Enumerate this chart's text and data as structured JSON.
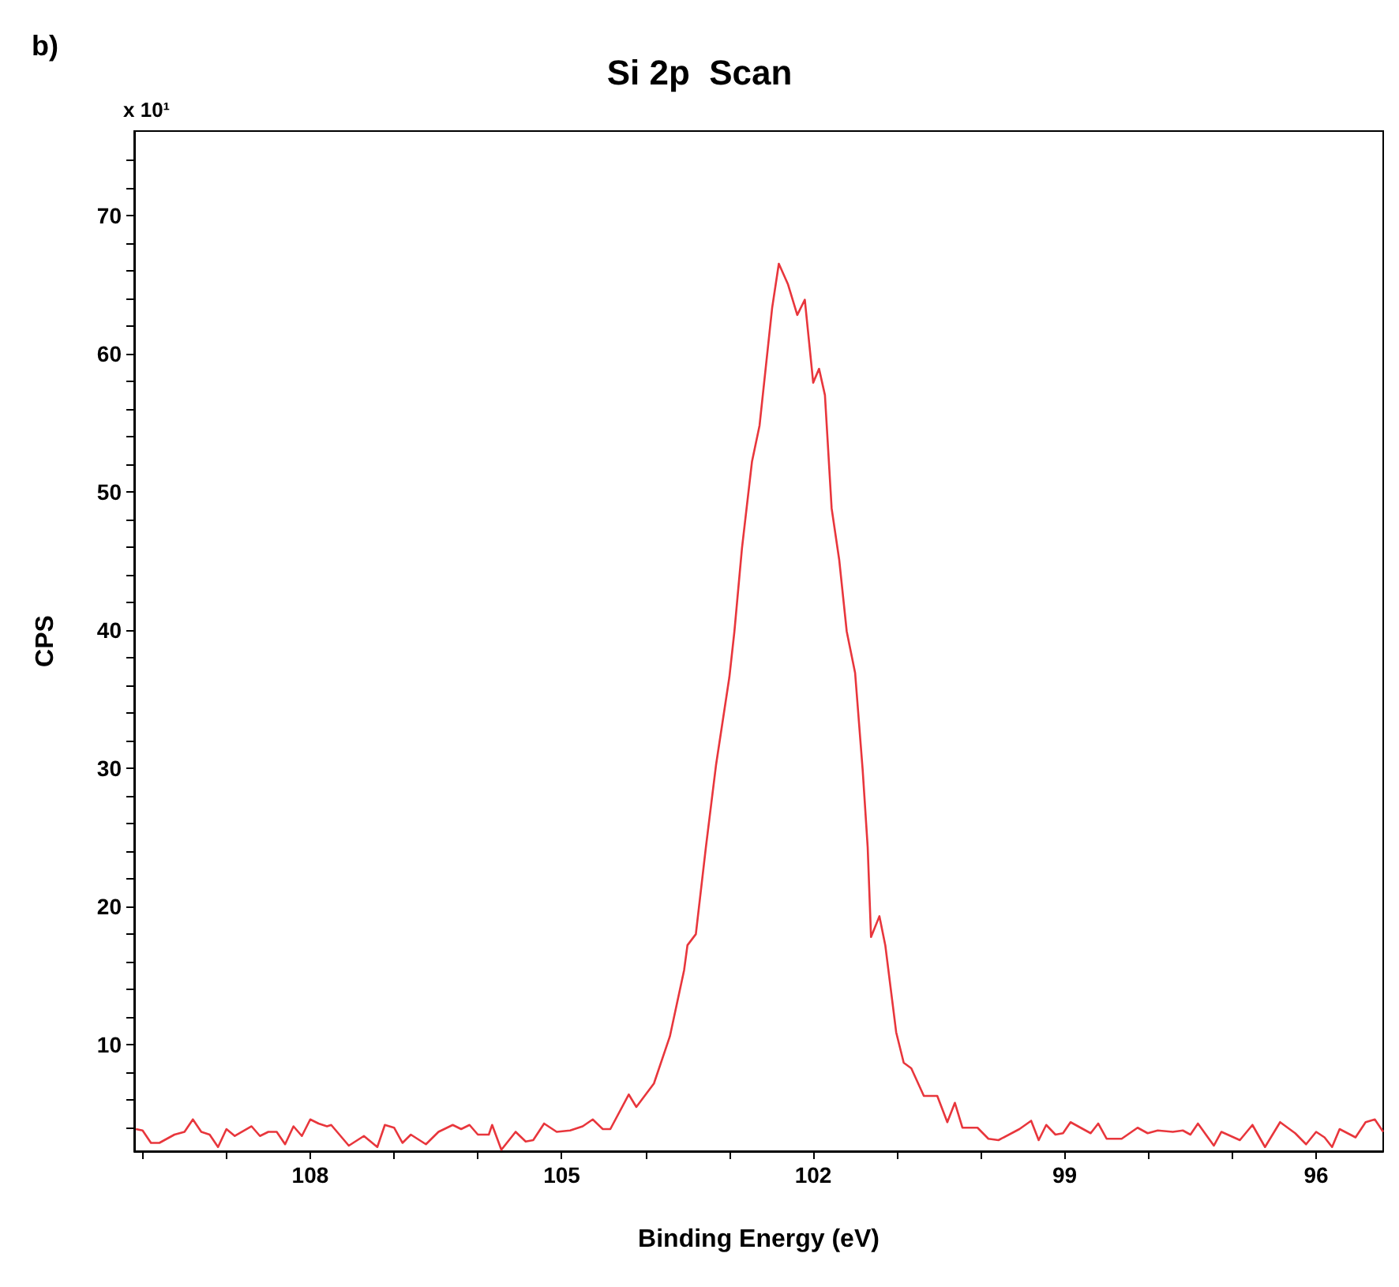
{
  "chart_data": {
    "type": "line",
    "title": "Si 2p  Scan",
    "xlabel": "Binding Energy (eV)",
    "ylabel": "CPS",
    "annotations": [
      "b)",
      "x 10¹"
    ],
    "xlim": [
      110.1,
      95.2
    ],
    "xticks": [
      {
        "value": 110,
        "label": null
      },
      {
        "value": 109,
        "label": null
      },
      108,
      {
        "value": 107,
        "label": null
      },
      {
        "value": 106,
        "label": null
      },
      105,
      {
        "value": 104,
        "label": null
      },
      {
        "value": 103,
        "label": null
      },
      102,
      {
        "value": 101,
        "label": null
      },
      {
        "value": 100,
        "label": null
      },
      99,
      {
        "value": 98,
        "label": null
      },
      {
        "value": 97,
        "label": null
      },
      96
    ],
    "ylim": [
      2.3,
      76.1
    ],
    "yticks": [
      {
        "value": 4,
        "label": null
      },
      {
        "value": 6,
        "label": null
      },
      {
        "value": 8,
        "label": null
      },
      10,
      {
        "value": 12,
        "label": null
      },
      {
        "value": 14,
        "label": null
      },
      {
        "value": 16,
        "label": null
      },
      {
        "value": 18,
        "label": null
      },
      20,
      {
        "value": 22,
        "label": null
      },
      {
        "value": 24,
        "label": null
      },
      {
        "value": 26,
        "label": null
      },
      {
        "value": 28,
        "label": null
      },
      30,
      {
        "value": 32,
        "label": null
      },
      {
        "value": 34,
        "label": null
      },
      {
        "value": 36,
        "label": null
      },
      {
        "value": 38,
        "label": null
      },
      40,
      {
        "value": 42,
        "label": null
      },
      {
        "value": 44,
        "label": null
      },
      {
        "value": 46,
        "label": null
      },
      {
        "value": 48,
        "label": null
      },
      50,
      {
        "value": 52,
        "label": null
      },
      {
        "value": 54,
        "label": null
      },
      {
        "value": 56,
        "label": null
      },
      {
        "value": 58,
        "label": null
      },
      60,
      {
        "value": 62,
        "label": null
      },
      {
        "value": 64,
        "label": null
      },
      {
        "value": 66,
        "label": null
      },
      {
        "value": 68,
        "label": null
      },
      70,
      {
        "value": 72,
        "label": null
      },
      {
        "value": 74,
        "label": null
      }
    ],
    "grid": false,
    "marker": "none",
    "line_style": "solid",
    "series": [
      {
        "color": "#e8363c",
        "x": [
          110.08,
          110.0,
          109.9,
          109.8,
          109.62,
          109.5,
          109.4,
          109.3,
          109.2,
          109.1,
          109.0,
          108.9,
          108.7,
          108.6,
          108.5,
          108.4,
          108.3,
          108.2,
          108.1,
          108.0,
          107.9,
          107.8,
          107.75,
          107.54,
          107.36,
          107.2,
          107.11,
          107.0,
          106.9,
          106.8,
          106.62,
          106.47,
          106.3,
          106.2,
          106.1,
          106.0,
          105.87,
          105.83,
          105.72,
          105.55,
          105.43,
          105.34,
          105.21,
          105.06,
          104.9,
          104.75,
          104.63,
          104.51,
          104.42,
          104.2,
          104.11,
          103.9,
          103.71,
          103.54,
          103.5,
          103.4,
          103.28,
          103.16,
          103.0,
          102.94,
          102.85,
          102.73,
          102.64,
          102.49,
          102.41,
          102.3,
          102.19,
          102.1,
          102.0,
          101.93,
          101.86,
          101.78,
          101.69,
          101.6,
          101.5,
          101.41,
          101.35,
          101.31,
          101.21,
          101.14,
          101.01,
          100.92,
          100.83,
          100.68,
          100.52,
          100.4,
          100.31,
          100.22,
          100.04,
          99.91,
          99.79,
          99.54,
          99.4,
          99.31,
          99.22,
          99.11,
          99.02,
          98.93,
          98.69,
          98.6,
          98.5,
          98.32,
          98.13,
          98.01,
          97.89,
          97.71,
          97.59,
          97.5,
          97.41,
          97.22,
          97.13,
          96.91,
          96.76,
          96.61,
          96.43,
          96.25,
          96.12,
          96.0,
          95.9,
          95.81,
          95.72,
          95.53,
          95.41,
          95.3,
          95.2
        ],
        "values": [
          3.9,
          3.8,
          2.9,
          2.9,
          3.5,
          3.7,
          4.6,
          3.7,
          3.5,
          2.6,
          3.9,
          3.4,
          4.1,
          3.4,
          3.7,
          3.7,
          2.8,
          4.1,
          3.4,
          4.6,
          4.3,
          4.1,
          4.2,
          2.7,
          3.4,
          2.6,
          4.2,
          4.0,
          2.9,
          3.5,
          2.8,
          3.7,
          4.2,
          3.9,
          4.2,
          3.5,
          3.5,
          4.2,
          2.4,
          3.7,
          3.0,
          3.1,
          4.3,
          3.7,
          3.8,
          4.1,
          4.6,
          3.9,
          3.9,
          6.4,
          5.5,
          7.2,
          10.6,
          15.4,
          17.2,
          18.0,
          24.3,
          30.2,
          36.6,
          39.9,
          45.9,
          52.2,
          54.8,
          63.3,
          66.5,
          65.0,
          62.8,
          63.9,
          57.9,
          58.9,
          57.0,
          48.8,
          45.1,
          39.9,
          36.9,
          29.9,
          24.3,
          17.8,
          19.3,
          17.2,
          10.9,
          8.7,
          8.3,
          6.3,
          6.3,
          4.4,
          5.8,
          4.0,
          4.0,
          3.2,
          3.1,
          3.9,
          4.5,
          3.1,
          4.2,
          3.5,
          3.6,
          4.4,
          3.6,
          4.3,
          3.2,
          3.2,
          4.0,
          3.6,
          3.8,
          3.7,
          3.8,
          3.5,
          4.3,
          2.7,
          3.7,
          3.1,
          4.2,
          2.6,
          4.4,
          3.6,
          2.8,
          3.7,
          3.3,
          2.6,
          3.9,
          3.3,
          4.4,
          4.6,
          3.7
        ]
      }
    ]
  }
}
